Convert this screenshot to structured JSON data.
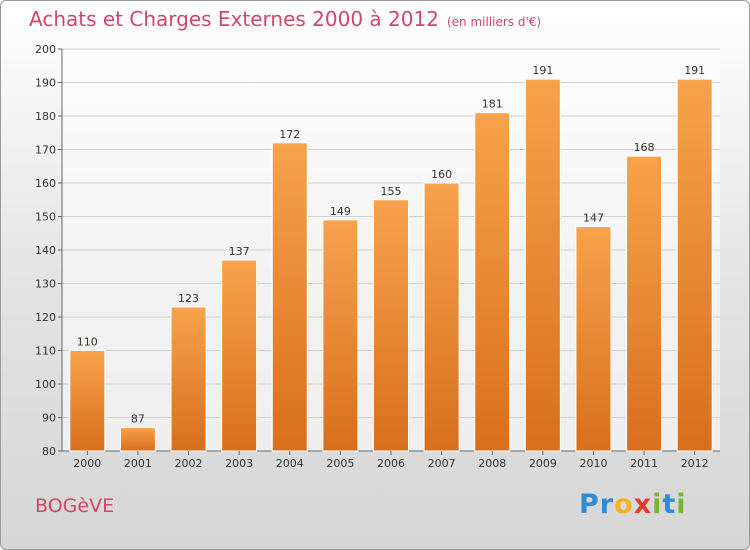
{
  "header": {
    "title": "Achats et Charges Externes 2000 à 2012",
    "subtitle": "(en milliers d'€)"
  },
  "footer": {
    "city": "BOGèVE",
    "brand_letters": [
      {
        "ch": "P",
        "color": "#2e8cd6"
      },
      {
        "ch": "r",
        "color": "#2e8cd6"
      },
      {
        "ch": "o",
        "color": "#f0b323"
      },
      {
        "ch": "x",
        "color": "#e63d2e"
      },
      {
        "ch": "i",
        "color": "#79b62f"
      },
      {
        "ch": "t",
        "color": "#2e8cd6"
      },
      {
        "ch": "i",
        "color": "#79b62f"
      }
    ]
  },
  "colors": {
    "bar_light": "#f7a24c",
    "bar_dark": "#d86f1c",
    "accent": "#d2466a"
  },
  "chart_data": {
    "type": "bar",
    "categories": [
      "2000",
      "2001",
      "2002",
      "2003",
      "2004",
      "2005",
      "2006",
      "2007",
      "2008",
      "2009",
      "2010",
      "2011",
      "2012"
    ],
    "values": [
      110,
      87,
      123,
      137,
      172,
      149,
      155,
      160,
      181,
      191,
      147,
      168,
      191
    ],
    "ylim": [
      80,
      200
    ],
    "yticks": [
      80,
      90,
      100,
      110,
      120,
      130,
      140,
      150,
      160,
      170,
      180,
      190,
      200
    ],
    "grid": true
  }
}
